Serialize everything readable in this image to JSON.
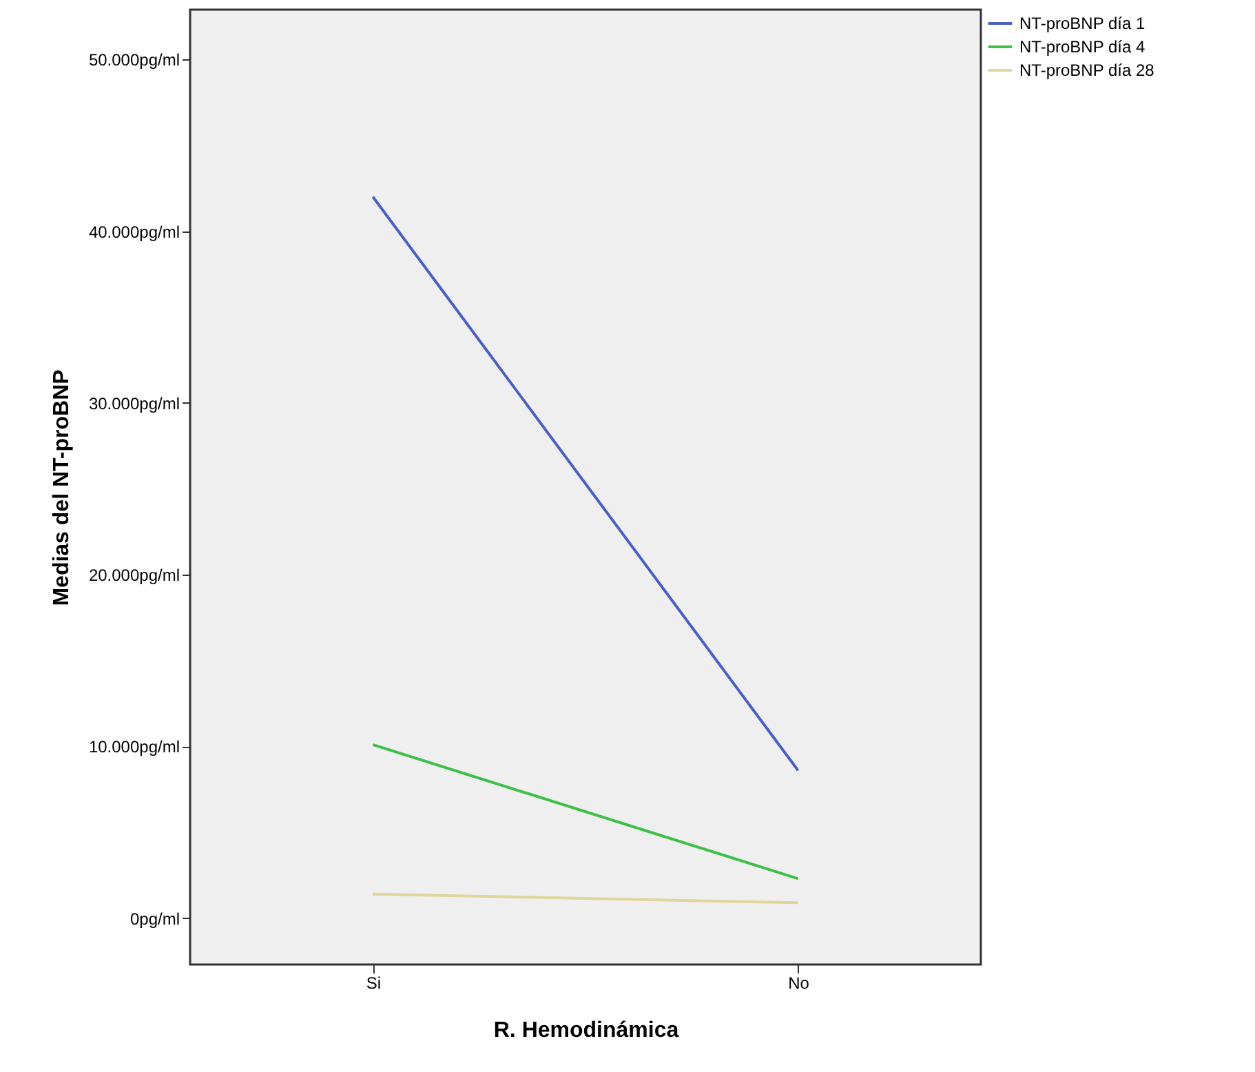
{
  "chart_data": {
    "type": "line",
    "xlabel": "R. Hemodinámica",
    "ylabel": "Medias del NT-proBNP",
    "categories": [
      "Si",
      "No"
    ],
    "series": [
      {
        "name": "NT-proBNP día 1",
        "color": "#4a5fc1",
        "values": [
          42000,
          8600
        ]
      },
      {
        "name": "NT-proBNP día 4",
        "color": "#3dbf4a",
        "values": [
          10100,
          2300
        ]
      },
      {
        "name": "NT-proBNP día 28",
        "color": "#e0d59a",
        "values": [
          1400,
          900
        ]
      }
    ],
    "ylim": [
      -2700,
      52900
    ],
    "yticks": [
      {
        "value": 0,
        "label": "0pg/ml"
      },
      {
        "value": 10000,
        "label": "10.000pg/ml"
      },
      {
        "value": 20000,
        "label": "20.000pg/ml"
      },
      {
        "value": 30000,
        "label": "30.000pg/ml"
      },
      {
        "value": 40000,
        "label": "40.000pg/ml"
      },
      {
        "value": 50000,
        "label": "50.000pg/ml"
      }
    ],
    "grid": false,
    "legend": "top right",
    "marker": "none",
    "line_style": "solid"
  }
}
